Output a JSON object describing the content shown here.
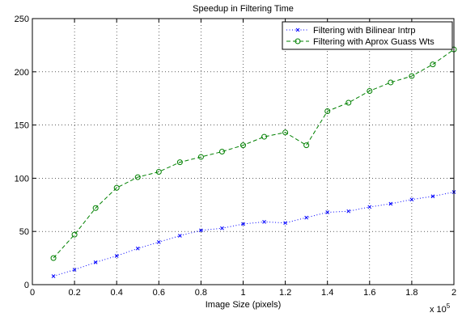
{
  "chart_data": {
    "type": "line",
    "title": "Speedup in Filtering Time",
    "xlabel": "Image Size (pixels)",
    "ylabel": "",
    "x_exponent_label": "x 10",
    "x_exponent_power": "5",
    "xlim": [
      0,
      2
    ],
    "ylim": [
      0,
      250
    ],
    "xticks": [
      0,
      0.2,
      0.4,
      0.6,
      0.8,
      1,
      1.2,
      1.4,
      1.6,
      1.8,
      2
    ],
    "xtick_labels": [
      "0",
      "0.2",
      "0.4",
      "0.6",
      "0.8",
      "1",
      "1.2",
      "1.4",
      "1.6",
      "1.8",
      "2"
    ],
    "yticks": [
      0,
      50,
      100,
      150,
      200,
      250
    ],
    "ytick_labels": [
      "0",
      "50",
      "100",
      "150",
      "200",
      "250"
    ],
    "grid": true,
    "legend_position": "top-right",
    "x": [
      0.1,
      0.2,
      0.3,
      0.4,
      0.5,
      0.6,
      0.7,
      0.8,
      0.9,
      1.0,
      1.1,
      1.2,
      1.3,
      1.4,
      1.5,
      1.6,
      1.7,
      1.8,
      1.9,
      2.0
    ],
    "series": [
      {
        "name": "Filtering with Bilinear Intrp",
        "color": "#0000ff",
        "line_style": "dotted",
        "marker": "x",
        "values": [
          8,
          14,
          21,
          27,
          34,
          40,
          46,
          51,
          53,
          57,
          59,
          58,
          63,
          68,
          69,
          73,
          76,
          80,
          83,
          87
        ]
      },
      {
        "name": "Filtering with Aprox Guass Wts",
        "color": "#008000",
        "line_style": "dashed",
        "marker": "circle",
        "values": [
          25,
          47,
          72,
          91,
          101,
          106,
          115,
          120,
          125,
          131,
          139,
          143,
          131,
          163,
          171,
          182,
          190,
          196,
          207,
          221
        ]
      }
    ]
  }
}
